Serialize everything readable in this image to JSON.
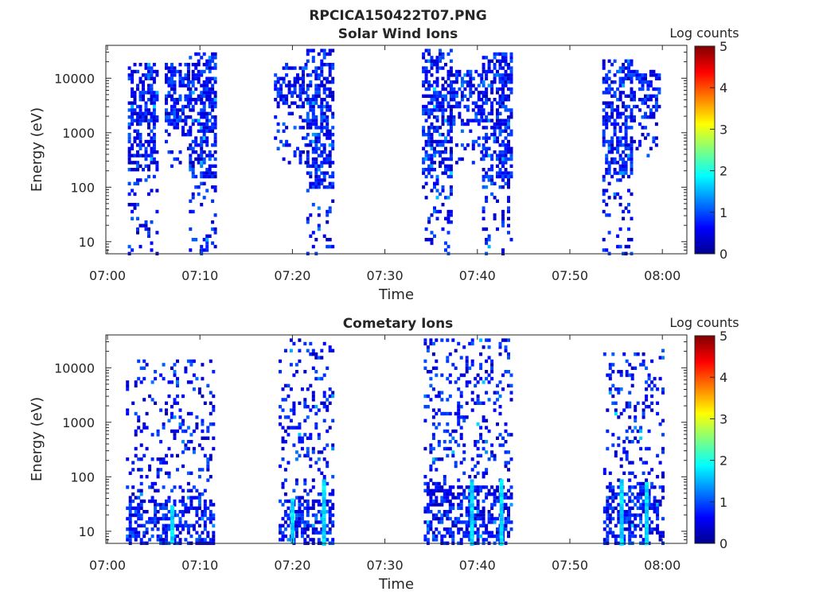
{
  "figure_title": "RPCICA150422T07.PNG",
  "colorbar": {
    "label": "Log counts",
    "ticks": [
      "0",
      "1",
      "2",
      "3",
      "4",
      "5"
    ],
    "range": [
      0,
      5
    ],
    "colormap": "jet"
  },
  "chart_data": [
    {
      "type": "heatmap",
      "title": "Solar Wind Ions",
      "xlabel": "Time",
      "ylabel": "Energy (eV)",
      "x_ticks": [
        "07:00",
        "07:10",
        "07:20",
        "07:30",
        "07:40",
        "07:50",
        "08:00"
      ],
      "y_ticks": [
        "10",
        "100",
        "1000",
        "10000"
      ],
      "y_scale": "log",
      "ylim": [
        6,
        40000
      ],
      "x_range_minutes": [
        0,
        63
      ],
      "bursts": [
        {
          "start_min": 2.2,
          "end_min": 5.3,
          "emin": 6,
          "emax": 22000,
          "dense_min": 200,
          "peak_log": 1.8
        },
        {
          "start_min": 6.2,
          "end_min": 8.8,
          "emin": 250,
          "emax": 20000,
          "dense_min": 1500,
          "peak_log": 1.2
        },
        {
          "start_min": 8.8,
          "end_min": 11.7,
          "emin": 6,
          "emax": 30000,
          "dense_min": 150,
          "peak_log": 1.7
        },
        {
          "start_min": 18.0,
          "end_min": 21.5,
          "emin": 300,
          "emax": 20000,
          "dense_min": 3000,
          "peak_log": 1.2
        },
        {
          "start_min": 21.5,
          "end_min": 24.4,
          "emin": 6,
          "emax": 40000,
          "dense_min": 100,
          "peak_log": 1.6
        },
        {
          "start_min": 34.0,
          "end_min": 37.0,
          "emin": 6,
          "emax": 40000,
          "dense_min": 150,
          "peak_log": 1.8
        },
        {
          "start_min": 37.0,
          "end_min": 40.5,
          "emin": 300,
          "emax": 15000,
          "dense_min": 1500,
          "peak_log": 1.3
        },
        {
          "start_min": 40.5,
          "end_min": 43.5,
          "emin": 6,
          "emax": 30000,
          "dense_min": 100,
          "peak_log": 1.6
        },
        {
          "start_min": 53.5,
          "end_min": 56.5,
          "emin": 6,
          "emax": 25000,
          "dense_min": 150,
          "peak_log": 1.6
        },
        {
          "start_min": 56.5,
          "end_min": 59.5,
          "emin": 400,
          "emax": 15000,
          "dense_min": 2000,
          "peak_log": 1.1
        }
      ]
    },
    {
      "type": "heatmap",
      "title": "Cometary Ions",
      "xlabel": "Time",
      "ylabel": "Energy (eV)",
      "x_ticks": [
        "07:00",
        "07:10",
        "07:20",
        "07:30",
        "07:40",
        "07:50",
        "08:00"
      ],
      "y_ticks": [
        "10",
        "100",
        "1000",
        "10000"
      ],
      "y_scale": "log",
      "ylim": [
        6,
        40000
      ],
      "x_range_minutes": [
        0,
        63
      ],
      "bursts": [
        {
          "start_min": 2.0,
          "end_min": 11.6,
          "emin": 6,
          "emax": 15000,
          "dense_min": 6,
          "dense_max": 40,
          "peak_log": 1.4
        },
        {
          "start_min": 18.5,
          "end_min": 24.3,
          "emin": 6,
          "emax": 35000,
          "dense_min": 6,
          "dense_max": 40,
          "peak_log": 1.6
        },
        {
          "start_min": 34.2,
          "end_min": 43.7,
          "emin": 6,
          "emax": 40000,
          "dense_min": 6,
          "dense_max": 80,
          "peak_log": 1.8
        },
        {
          "start_min": 53.6,
          "end_min": 59.9,
          "emin": 6,
          "emax": 25000,
          "dense_min": 6,
          "dense_max": 80,
          "peak_log": 1.8
        }
      ],
      "cyan_streaks": [
        {
          "min": 6.8,
          "top": 30
        },
        {
          "min": 19.8,
          "top": 40
        },
        {
          "min": 23.2,
          "top": 90
        },
        {
          "min": 39.2,
          "top": 90
        },
        {
          "min": 42.4,
          "top": 90
        },
        {
          "min": 55.4,
          "top": 90
        },
        {
          "min": 58.1,
          "top": 80
        }
      ]
    }
  ]
}
